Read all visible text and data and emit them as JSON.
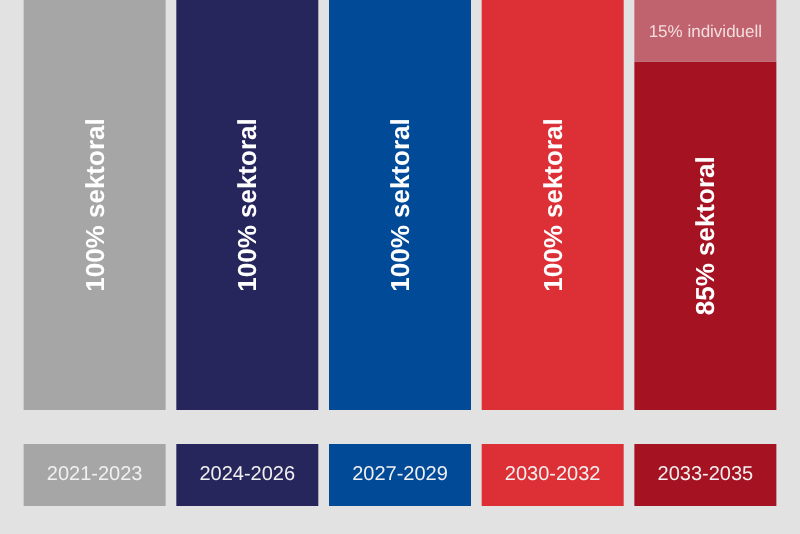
{
  "chart_data": {
    "type": "bar",
    "stacked": true,
    "categories": [
      "2021-2023",
      "2024-2026",
      "2027-2029",
      "2030-2032",
      "2033-2035"
    ],
    "series": [
      {
        "colors": [
          "#a6a6a6",
          "#27265c",
          "#004a98",
          "#dd2f36",
          "#a51222"
        ],
        "values": [
          100,
          100,
          100,
          100,
          85
        ],
        "value_labels": [
          "100% sektoral",
          "100% sektoral",
          "100% sektoral",
          "100% sektoral",
          "85% sektoral"
        ]
      },
      {
        "colors": [
          null,
          null,
          null,
          null,
          "#c0636e"
        ],
        "values": [
          null,
          null,
          null,
          null,
          15
        ],
        "value_labels": [
          null,
          null,
          null,
          null,
          "15% individuell"
        ]
      }
    ]
  }
}
